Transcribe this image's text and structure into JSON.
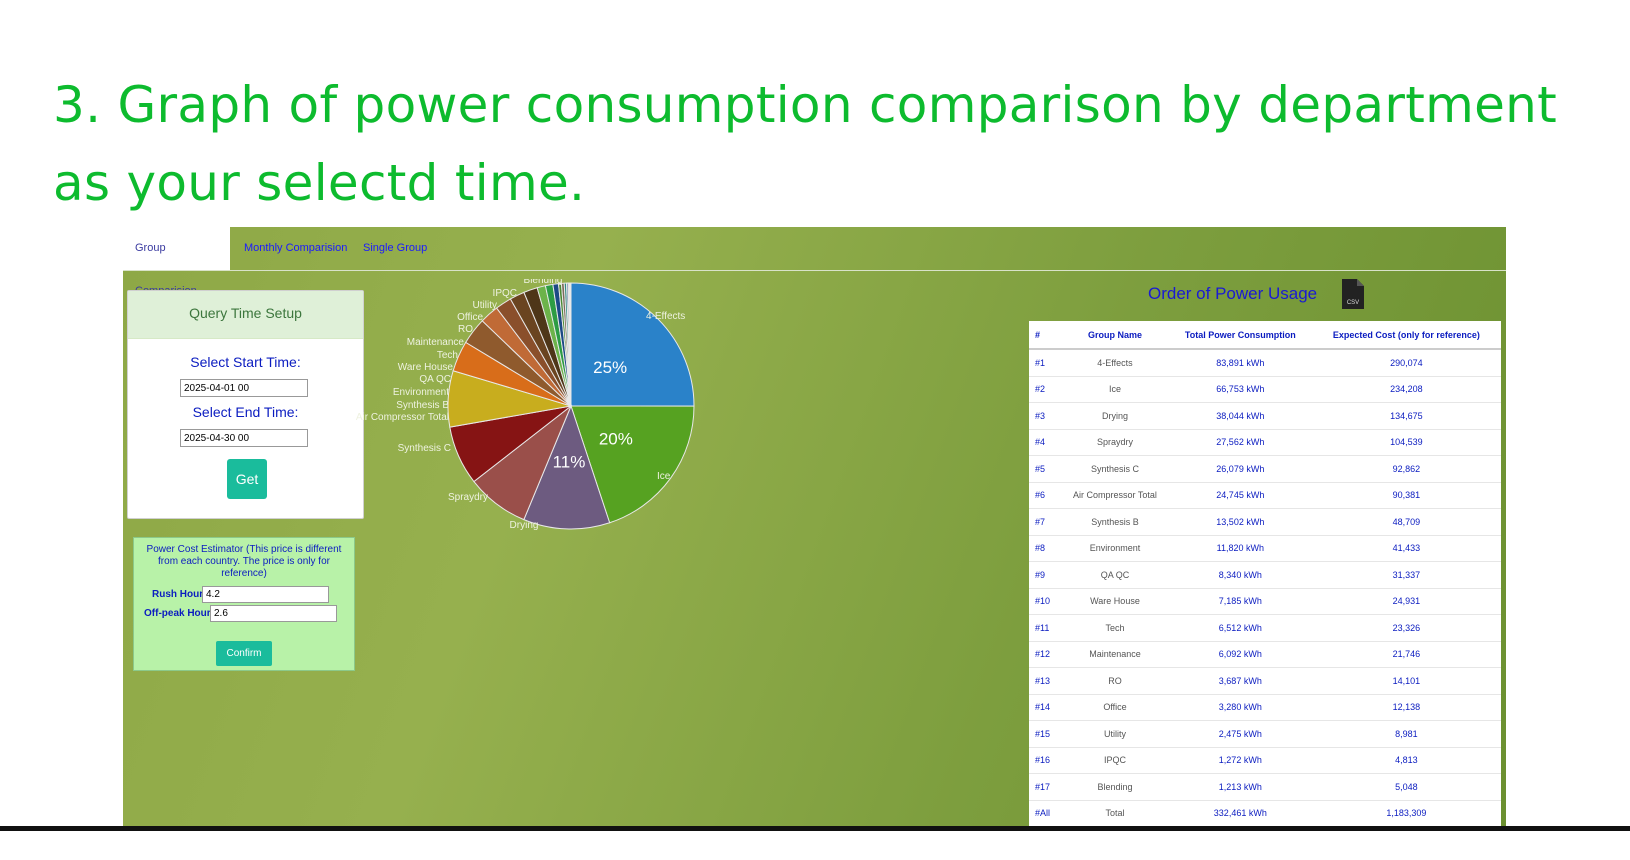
{
  "headline": "3. Graph of power consumption comparison by department as your selectd time.",
  "tabs": [
    {
      "label": "Group Comparision",
      "active": true
    },
    {
      "label": "Monthly Comparision",
      "active": false
    },
    {
      "label": "Single Group",
      "active": false
    }
  ],
  "query": {
    "title": "Query Time Setup",
    "start_label": "Select Start Time:",
    "start_value": "2025-04-01 00",
    "end_label": "Select End Time:",
    "end_value": "2025-04-30 00",
    "get_label": "Get"
  },
  "cost_estimator": {
    "title": "Power Cost Estimator (This price is different from each country. The price is only for reference)",
    "rush_label": "Rush Hour",
    "rush_value": "4.2",
    "offpeak_label": "Off-peak Hour",
    "offpeak_value": "2.6",
    "confirm_label": "Confirm"
  },
  "order": {
    "title": "Order of Power Usage",
    "export_icon": "csv-file-icon",
    "headers": [
      "#",
      "Group Name",
      "Total Power Consumption",
      "Expected Cost (only for reference)"
    ],
    "rows": [
      {
        "rank": "#1",
        "name": "4-Effects",
        "kwh": "83,891 kWh",
        "cost": "290,074"
      },
      {
        "rank": "#2",
        "name": "Ice",
        "kwh": "66,753 kWh",
        "cost": "234,208"
      },
      {
        "rank": "#3",
        "name": "Drying",
        "kwh": "38,044 kWh",
        "cost": "134,675"
      },
      {
        "rank": "#4",
        "name": "Spraydry",
        "kwh": "27,562 kWh",
        "cost": "104,539"
      },
      {
        "rank": "#5",
        "name": "Synthesis C",
        "kwh": "26,079 kWh",
        "cost": "92,862"
      },
      {
        "rank": "#6",
        "name": "Air Compressor Total",
        "kwh": "24,745 kWh",
        "cost": "90,381"
      },
      {
        "rank": "#7",
        "name": "Synthesis B",
        "kwh": "13,502 kWh",
        "cost": "48,709"
      },
      {
        "rank": "#8",
        "name": "Environment",
        "kwh": "11,820 kWh",
        "cost": "41,433"
      },
      {
        "rank": "#9",
        "name": "QA QC",
        "kwh": "8,340 kWh",
        "cost": "31,337"
      },
      {
        "rank": "#10",
        "name": "Ware House",
        "kwh": "7,185 kWh",
        "cost": "24,931"
      },
      {
        "rank": "#11",
        "name": "Tech",
        "kwh": "6,512 kWh",
        "cost": "23,326"
      },
      {
        "rank": "#12",
        "name": "Maintenance",
        "kwh": "6,092 kWh",
        "cost": "21,746"
      },
      {
        "rank": "#13",
        "name": "RO",
        "kwh": "3,687 kWh",
        "cost": "14,101"
      },
      {
        "rank": "#14",
        "name": "Office",
        "kwh": "3,280 kWh",
        "cost": "12,138"
      },
      {
        "rank": "#15",
        "name": "Utility",
        "kwh": "2,475 kWh",
        "cost": "8,981"
      },
      {
        "rank": "#16",
        "name": "IPQC",
        "kwh": "1,272 kWh",
        "cost": "4,813"
      },
      {
        "rank": "#17",
        "name": "Blending",
        "kwh": "1,213 kWh",
        "cost": "5,048"
      },
      {
        "rank": "#All",
        "name": "Total",
        "kwh": "332,461 kWh",
        "cost": "1,183,309"
      }
    ]
  },
  "chart_data": {
    "type": "pie",
    "categories": [
      "4-Effects",
      "Ice",
      "Drying",
      "Spraydry",
      "Synthesis C",
      "Air Compressor Total",
      "Synthesis B",
      "Environment",
      "QA QC",
      "Ware House",
      "Tech",
      "Maintenance",
      "RO",
      "Office",
      "Utility",
      "IPQC",
      "Blending",
      "",
      "",
      "",
      "",
      "",
      ""
    ],
    "values": [
      83891,
      66753,
      38044,
      27562,
      26079,
      24745,
      13502,
      11820,
      8340,
      7185,
      6512,
      6092,
      3687,
      3280,
      2475,
      1272,
      1213,
      1000,
      700,
      500,
      350,
      250,
      150
    ],
    "percent_labels": {
      "4-Effects": "25%",
      "Ice": "20%",
      "Drying": "11%"
    },
    "colors": [
      "#2a82c9",
      "#56a221",
      "#6d5b80",
      "#9a4f4a",
      "#861414",
      "#c8ad1e",
      "#d86d1a",
      "#8f5a2d",
      "#c06a36",
      "#8a4f2b",
      "#6a4420",
      "#4e3618",
      "#6cb34a",
      "#2d9c44",
      "#1c4a86",
      "#4a8a33",
      "#7b6b5b",
      "#2f8a82",
      "#3a5f9a",
      "#b89a5e",
      "#8c8c8c",
      "#c97a45",
      "#5e6e2e"
    ]
  }
}
